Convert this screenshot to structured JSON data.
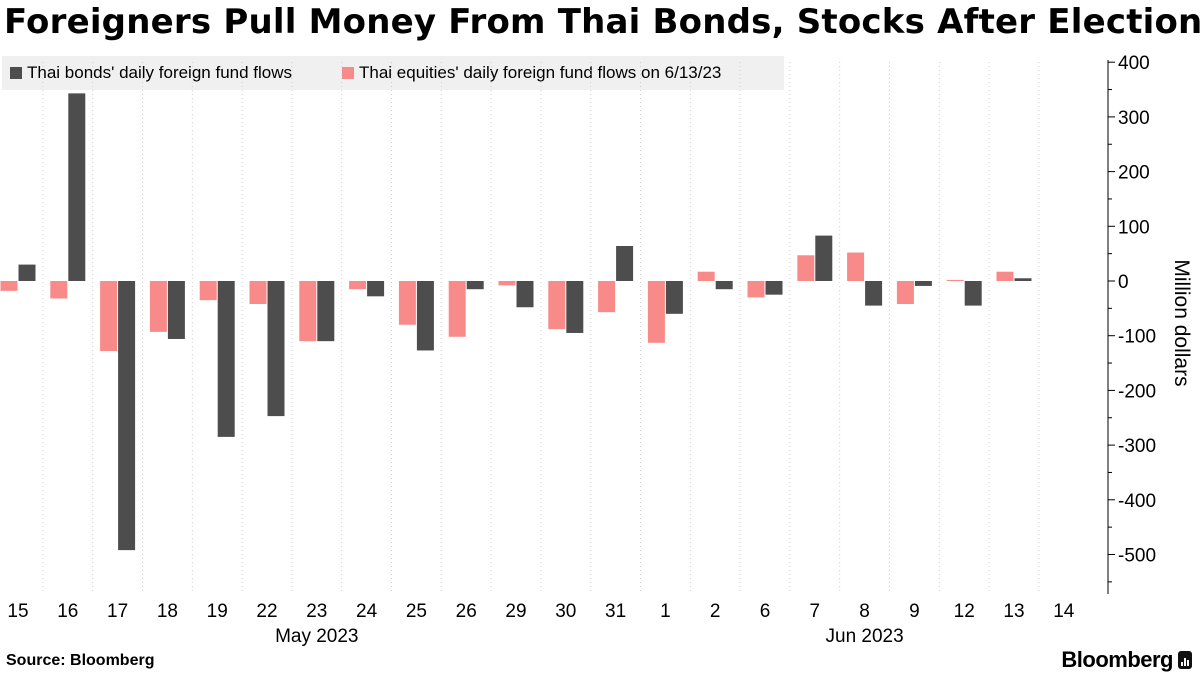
{
  "header": {
    "title": "Foreigners Pull Money From Thai Bonds, Stocks After Election"
  },
  "legend": {
    "bonds_label": "Thai bonds' daily foreign fund flows",
    "equities_label": "Thai equities' daily foreign fund flows on 6/13/23"
  },
  "footer": {
    "source": "Source: Bloomberg",
    "logo_text": "Bloomberg"
  },
  "colors": {
    "bonds": "#4d4d4d",
    "equities": "#f88a8a",
    "axis": "#000000",
    "gridline": "#cfcfcf"
  },
  "chart_data": {
    "type": "bar",
    "title": "Foreigners Pull Money From Thai Bonds, Stocks After Election",
    "xlabel": "",
    "ylabel": "Million dollars",
    "ylim": [
      -570,
      420
    ],
    "yticks": [
      400,
      300,
      200,
      100,
      0,
      -100,
      -200,
      -300,
      -400,
      -500
    ],
    "y_axis_side": "right",
    "grid": "vertical dotted at category boundaries",
    "legend_position": "top-left",
    "categories": [
      "15",
      "16",
      "17",
      "18",
      "19",
      "22",
      "23",
      "24",
      "25",
      "26",
      "29",
      "30",
      "31",
      "1",
      "2",
      "6",
      "7",
      "8",
      "9",
      "12",
      "13",
      "14"
    ],
    "month_labels": [
      {
        "label": "May 2023",
        "center_index": 6
      },
      {
        "label": "Jun 2023",
        "center_index": 17
      }
    ],
    "series": [
      {
        "name": "Thai equities' daily foreign fund flows on 6/13/23",
        "color": "#f88a8a",
        "values": [
          -18,
          -32,
          -128,
          -93,
          -35,
          -42,
          -110,
          -15,
          -80,
          -102,
          -8,
          -88,
          -57,
          -113,
          17,
          -30,
          47,
          52,
          -42,
          2,
          17,
          null
        ]
      },
      {
        "name": "Thai bonds' daily foreign fund flows",
        "color": "#4d4d4d",
        "values": [
          30,
          343,
          -492,
          -106,
          -285,
          -247,
          -110,
          -28,
          -127,
          -15,
          -48,
          -95,
          64,
          -60,
          -15,
          -25,
          83,
          -45,
          -9,
          -45,
          5,
          null
        ]
      }
    ]
  }
}
